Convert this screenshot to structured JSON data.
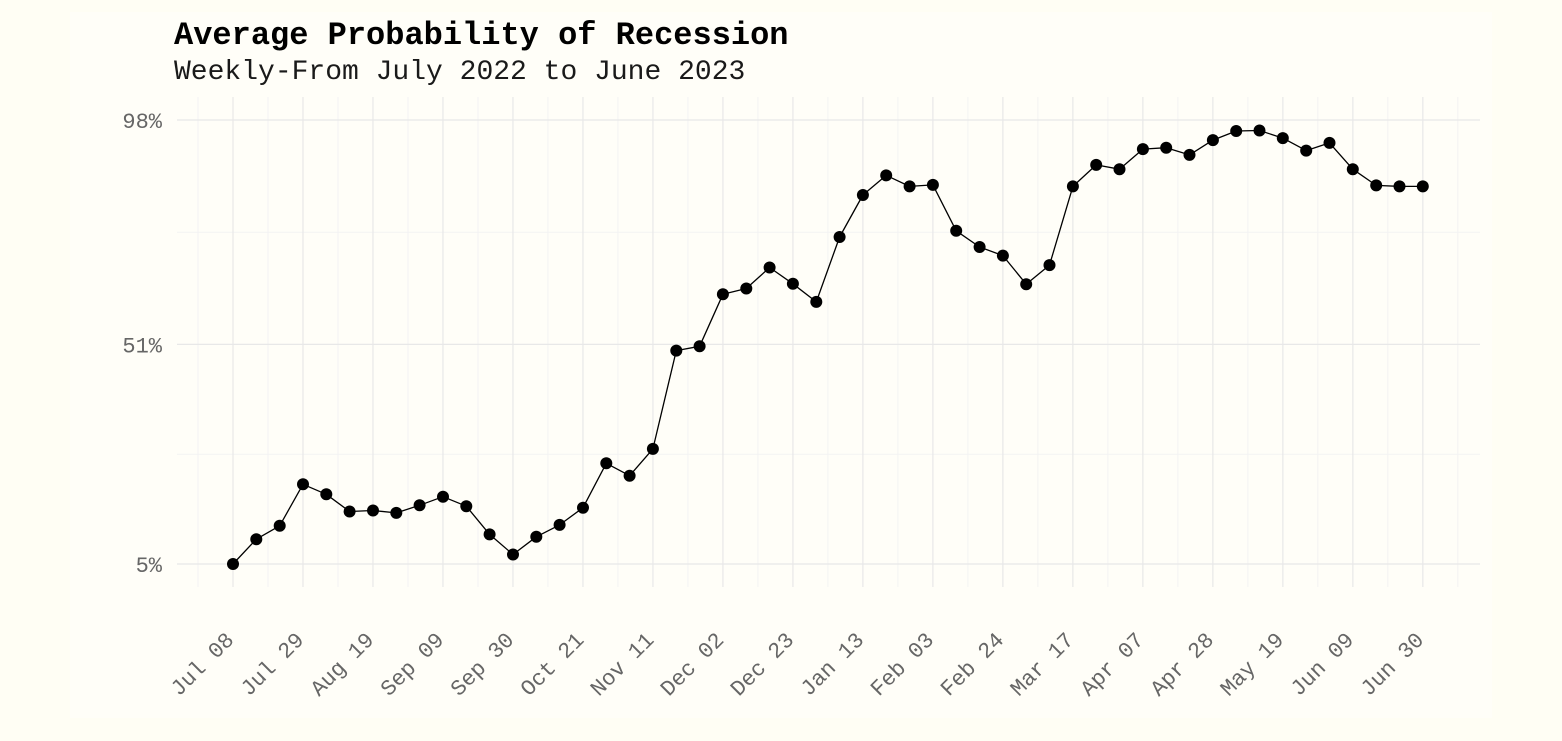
{
  "title": "Average Probability of Recession",
  "subtitle": "Weekly-From July 2022 to June 2023",
  "colors": {
    "page_background": "#fffef4",
    "panel_background": "#fffef8",
    "grid_major": "#e8e8e8",
    "grid_minor": "#f3f3f3",
    "axis_text": "#666666",
    "series": "#000000"
  },
  "chart_data": {
    "type": "line",
    "markers": "filled-circle",
    "title": "Average Probability of Recession",
    "subtitle": "Weekly-From July 2022 to June 2023",
    "xlabel": "",
    "ylabel": "",
    "grid": true,
    "legend": "none",
    "x_ticks": [
      "Jul 08",
      "Jul 29",
      "Aug 19",
      "Sep 09",
      "Sep 30",
      "Oct 21",
      "Nov 11",
      "Dec 02",
      "Dec 23",
      "Jan 13",
      "Feb 03",
      "Feb 24",
      "Mar 17",
      "Apr 07",
      "Apr 28",
      "May 19",
      "Jun 09",
      "Jun 30"
    ],
    "y_ticks": [
      {
        "value": 5,
        "label": "5%"
      },
      {
        "value": 51,
        "label": "51%"
      },
      {
        "value": 98,
        "label": "98%"
      }
    ],
    "ylim": [
      0,
      103
    ],
    "x": [
      "2022-07-08",
      "2022-07-15",
      "2022-07-22",
      "2022-07-29",
      "2022-08-05",
      "2022-08-12",
      "2022-08-19",
      "2022-08-26",
      "2022-09-02",
      "2022-09-09",
      "2022-09-16",
      "2022-09-23",
      "2022-09-30",
      "2022-10-07",
      "2022-10-14",
      "2022-10-21",
      "2022-10-28",
      "2022-11-04",
      "2022-11-11",
      "2022-11-18",
      "2022-11-25",
      "2022-12-02",
      "2022-12-09",
      "2022-12-16",
      "2022-12-23",
      "2022-12-30",
      "2023-01-06",
      "2023-01-13",
      "2023-01-20",
      "2023-01-27",
      "2023-02-03",
      "2023-02-10",
      "2023-02-17",
      "2023-02-24",
      "2023-03-03",
      "2023-03-10",
      "2023-03-17",
      "2023-03-24",
      "2023-03-31",
      "2023-04-07",
      "2023-04-14",
      "2023-04-21",
      "2023-04-28",
      "2023-05-05",
      "2023-05-12",
      "2023-05-19",
      "2023-05-26",
      "2023-06-02",
      "2023-06-09",
      "2023-06-16",
      "2023-06-23",
      "2023-06-30"
    ],
    "series": [
      {
        "values": [
          5.0,
          10.2,
          13.0,
          21.7,
          19.6,
          16.0,
          16.2,
          15.7,
          17.3,
          19.1,
          17.1,
          11.2,
          7.0,
          10.7,
          13.2,
          16.8,
          26.1,
          23.5,
          29.1,
          49.7,
          50.6,
          61.5,
          62.7,
          67.1,
          63.7,
          59.9,
          73.5,
          82.3,
          86.4,
          84.1,
          84.4,
          74.8,
          71.4,
          69.6,
          63.6,
          67.6,
          84.1,
          88.6,
          87.7,
          91.9,
          92.2,
          90.7,
          93.8,
          95.7,
          95.8,
          94.2,
          91.6,
          93.2,
          87.7,
          84.3,
          84.1,
          84.1
        ]
      }
    ]
  }
}
